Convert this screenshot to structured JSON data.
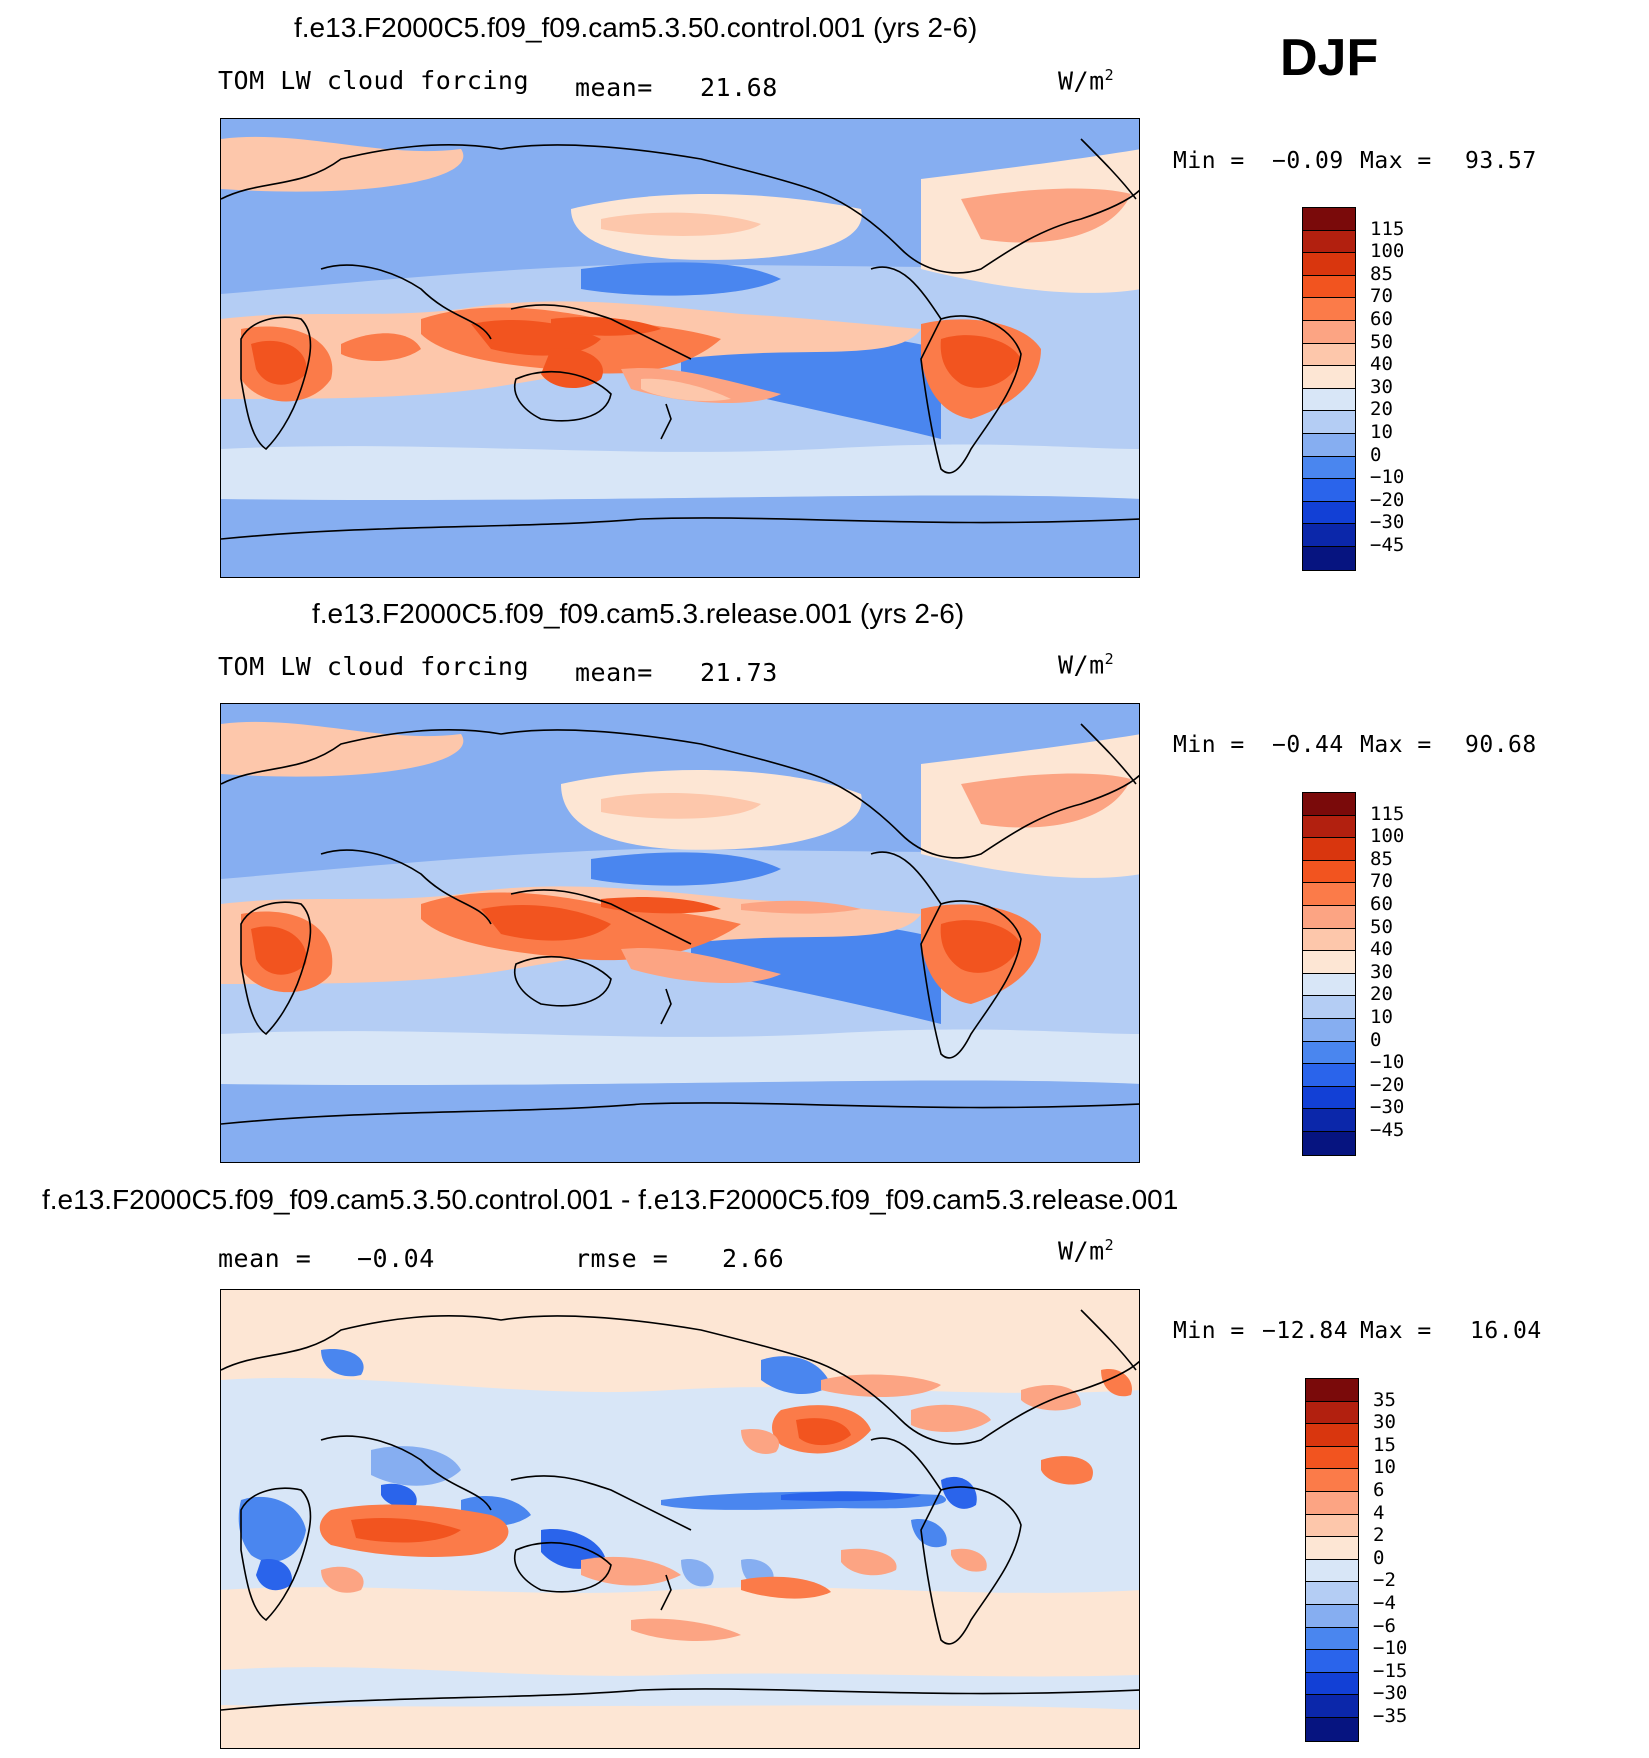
{
  "season": "DJF",
  "panels": [
    {
      "title": "f.e13.F2000C5.f09_f09.cam5.3.50.control.001 (yrs 2-6)",
      "left_label": "TOM LW cloud forcing",
      "stat_label": "mean=",
      "stat_value": "21.68",
      "units": "W/m",
      "units_sup": "2",
      "min_label": "Min =",
      "min_value": "−0.09",
      "max_label": "Max =",
      "max_value": "93.57",
      "colorbar_labels": [
        "115",
        "100",
        "85",
        "70",
        "60",
        "50",
        "40",
        "30",
        "20",
        "10",
        "0",
        "−10",
        "−20",
        "−30",
        "−45"
      ]
    },
    {
      "title": "f.e13.F2000C5.f09_f09.cam5.3.release.001 (yrs 2-6)",
      "left_label": "TOM LW cloud forcing",
      "stat_label": "mean=",
      "stat_value": "21.73",
      "units": "W/m",
      "units_sup": "2",
      "min_label": "Min =",
      "min_value": "−0.44",
      "max_label": "Max =",
      "max_value": "90.68",
      "colorbar_labels": [
        "115",
        "100",
        "85",
        "70",
        "60",
        "50",
        "40",
        "30",
        "20",
        "10",
        "0",
        "−10",
        "−20",
        "−30",
        "−45"
      ]
    },
    {
      "title": "f.e13.F2000C5.f09_f09.cam5.3.50.control.001 - f.e13.F2000C5.f09_f09.cam5.3.release.001",
      "mean_label": "mean =",
      "mean_value": "−0.04",
      "rmse_label": "rmse =",
      "rmse_value": "2.66",
      "units": "W/m",
      "units_sup": "2",
      "min_label": "Min =",
      "min_value": "−12.84",
      "max_label": "Max =",
      "max_value": "16.04",
      "colorbar_labels": [
        "35",
        "30",
        "15",
        "10",
        "6",
        "4",
        "2",
        "0",
        "−2",
        "−4",
        "−6",
        "−10",
        "−15",
        "−30",
        "−35"
      ]
    }
  ],
  "colors": {
    "scale": [
      "#7a0a0a",
      "#b2200f",
      "#d9360e",
      "#f2541f",
      "#fb7b49",
      "#fca483",
      "#fdc7ab",
      "#fde6d4",
      "#d8e6f7",
      "#b4cdf4",
      "#86aef1",
      "#4a86ef",
      "#2a64eb",
      "#1240d6",
      "#0b27aa",
      "#061480"
    ]
  }
}
